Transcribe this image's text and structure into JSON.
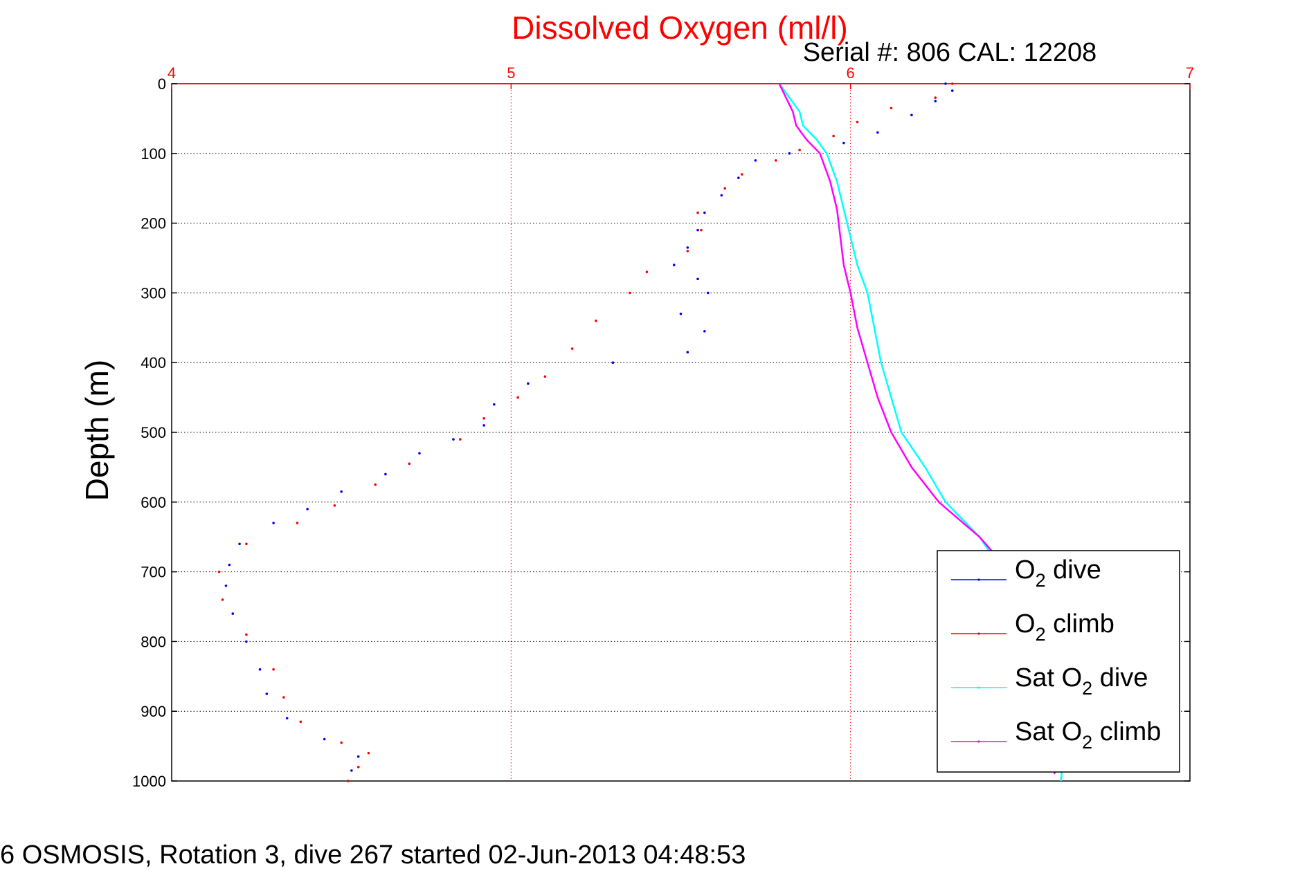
{
  "chart_data": {
    "type": "scatter",
    "title": "Dissolved Oxygen (ml/l)",
    "subtitle": "Serial #: 806  CAL: 12208",
    "ylabel": "Depth (m)",
    "footer": "6 OSMOSIS, Rotation 3, dive 267 started 02-Jun-2013 04:48:53",
    "xlim": [
      4,
      7
    ],
    "ylim": [
      0,
      1000
    ],
    "y_reversed": true,
    "x_axis_position": "top",
    "xticks": [
      "4",
      "5",
      "6",
      "7"
    ],
    "yticks": [
      "0",
      "100",
      "200",
      "300",
      "400",
      "500",
      "600",
      "700",
      "800",
      "900",
      "1000"
    ],
    "grid": true,
    "legend_position": "bottom-right",
    "series": [
      {
        "name": "O2 dive",
        "legend": {
          "base": "O",
          "sub": "2",
          "suffix": " dive"
        },
        "color": "#0000ff",
        "style": "dots",
        "points": [
          [
            6.28,
            0
          ],
          [
            6.3,
            10
          ],
          [
            6.25,
            25
          ],
          [
            6.18,
            45
          ],
          [
            6.08,
            70
          ],
          [
            5.98,
            85
          ],
          [
            5.82,
            100
          ],
          [
            5.72,
            110
          ],
          [
            5.67,
            135
          ],
          [
            5.62,
            160
          ],
          [
            5.57,
            185
          ],
          [
            5.55,
            210
          ],
          [
            5.52,
            235
          ],
          [
            5.48,
            260
          ],
          [
            5.55,
            280
          ],
          [
            5.58,
            300
          ],
          [
            5.5,
            330
          ],
          [
            5.57,
            355
          ],
          [
            5.52,
            385
          ],
          [
            5.3,
            400
          ],
          [
            5.05,
            430
          ],
          [
            4.95,
            460
          ],
          [
            4.92,
            490
          ],
          [
            4.83,
            510
          ],
          [
            4.73,
            530
          ],
          [
            4.63,
            560
          ],
          [
            4.5,
            585
          ],
          [
            4.4,
            610
          ],
          [
            4.3,
            630
          ],
          [
            4.2,
            660
          ],
          [
            4.17,
            690
          ],
          [
            4.16,
            720
          ],
          [
            4.18,
            760
          ],
          [
            4.22,
            800
          ],
          [
            4.26,
            840
          ],
          [
            4.28,
            875
          ],
          [
            4.34,
            910
          ],
          [
            4.45,
            940
          ],
          [
            4.55,
            965
          ],
          [
            4.53,
            985
          ],
          [
            4.52,
            1000
          ]
        ]
      },
      {
        "name": "O2 climb",
        "legend": {
          "base": "O",
          "sub": "2",
          "suffix": " climb"
        },
        "color": "#ff0000",
        "style": "dots",
        "points": [
          [
            6.3,
            0
          ],
          [
            6.25,
            20
          ],
          [
            6.12,
            35
          ],
          [
            6.02,
            55
          ],
          [
            5.95,
            75
          ],
          [
            5.85,
            95
          ],
          [
            5.78,
            110
          ],
          [
            5.68,
            130
          ],
          [
            5.63,
            150
          ],
          [
            5.55,
            185
          ],
          [
            5.56,
            210
          ],
          [
            5.52,
            240
          ],
          [
            5.4,
            270
          ],
          [
            5.35,
            300
          ],
          [
            5.25,
            340
          ],
          [
            5.18,
            380
          ],
          [
            5.1,
            420
          ],
          [
            5.02,
            450
          ],
          [
            4.92,
            480
          ],
          [
            4.85,
            510
          ],
          [
            4.7,
            545
          ],
          [
            4.6,
            575
          ],
          [
            4.48,
            605
          ],
          [
            4.37,
            630
          ],
          [
            4.22,
            660
          ],
          [
            4.14,
            700
          ],
          [
            4.15,
            740
          ],
          [
            4.22,
            790
          ],
          [
            4.3,
            840
          ],
          [
            4.33,
            880
          ],
          [
            4.38,
            915
          ],
          [
            4.5,
            945
          ],
          [
            4.58,
            960
          ],
          [
            4.55,
            980
          ],
          [
            4.52,
            1000
          ]
        ]
      },
      {
        "name": "Sat O2 dive",
        "legend": {
          "base": "Sat O",
          "sub": "2",
          "suffix": " dive"
        },
        "color": "#00ffff",
        "style": "line",
        "points": [
          [
            5.79,
            0
          ],
          [
            5.82,
            20
          ],
          [
            5.85,
            40
          ],
          [
            5.86,
            60
          ],
          [
            5.9,
            80
          ],
          [
            5.93,
            100
          ],
          [
            5.96,
            140
          ],
          [
            5.98,
            180
          ],
          [
            6.0,
            220
          ],
          [
            6.02,
            260
          ],
          [
            6.05,
            300
          ],
          [
            6.07,
            350
          ],
          [
            6.09,
            400
          ],
          [
            6.12,
            450
          ],
          [
            6.15,
            500
          ],
          [
            6.22,
            550
          ],
          [
            6.28,
            600
          ],
          [
            6.38,
            650
          ],
          [
            6.45,
            700
          ],
          [
            6.52,
            750
          ],
          [
            6.58,
            800
          ],
          [
            6.62,
            850
          ],
          [
            6.64,
            900
          ],
          [
            6.63,
            950
          ],
          [
            6.62,
            1000
          ]
        ]
      },
      {
        "name": "Sat O2 climb",
        "legend": {
          "base": "Sat O",
          "sub": "2",
          "suffix": " climb"
        },
        "color": "#ff00ff",
        "style": "line",
        "points": [
          [
            5.79,
            0
          ],
          [
            5.81,
            20
          ],
          [
            5.83,
            40
          ],
          [
            5.84,
            60
          ],
          [
            5.87,
            80
          ],
          [
            5.91,
            100
          ],
          [
            5.94,
            140
          ],
          [
            5.96,
            180
          ],
          [
            5.97,
            220
          ],
          [
            5.98,
            260
          ],
          [
            6.0,
            300
          ],
          [
            6.02,
            350
          ],
          [
            6.05,
            400
          ],
          [
            6.08,
            450
          ],
          [
            6.12,
            500
          ],
          [
            6.18,
            550
          ],
          [
            6.26,
            600
          ],
          [
            6.38,
            650
          ],
          [
            6.47,
            700
          ],
          [
            6.54,
            750
          ],
          [
            6.6,
            800
          ],
          [
            6.63,
            850
          ],
          [
            6.64,
            900
          ],
          [
            6.63,
            950
          ],
          [
            6.6,
            990
          ]
        ]
      }
    ]
  }
}
